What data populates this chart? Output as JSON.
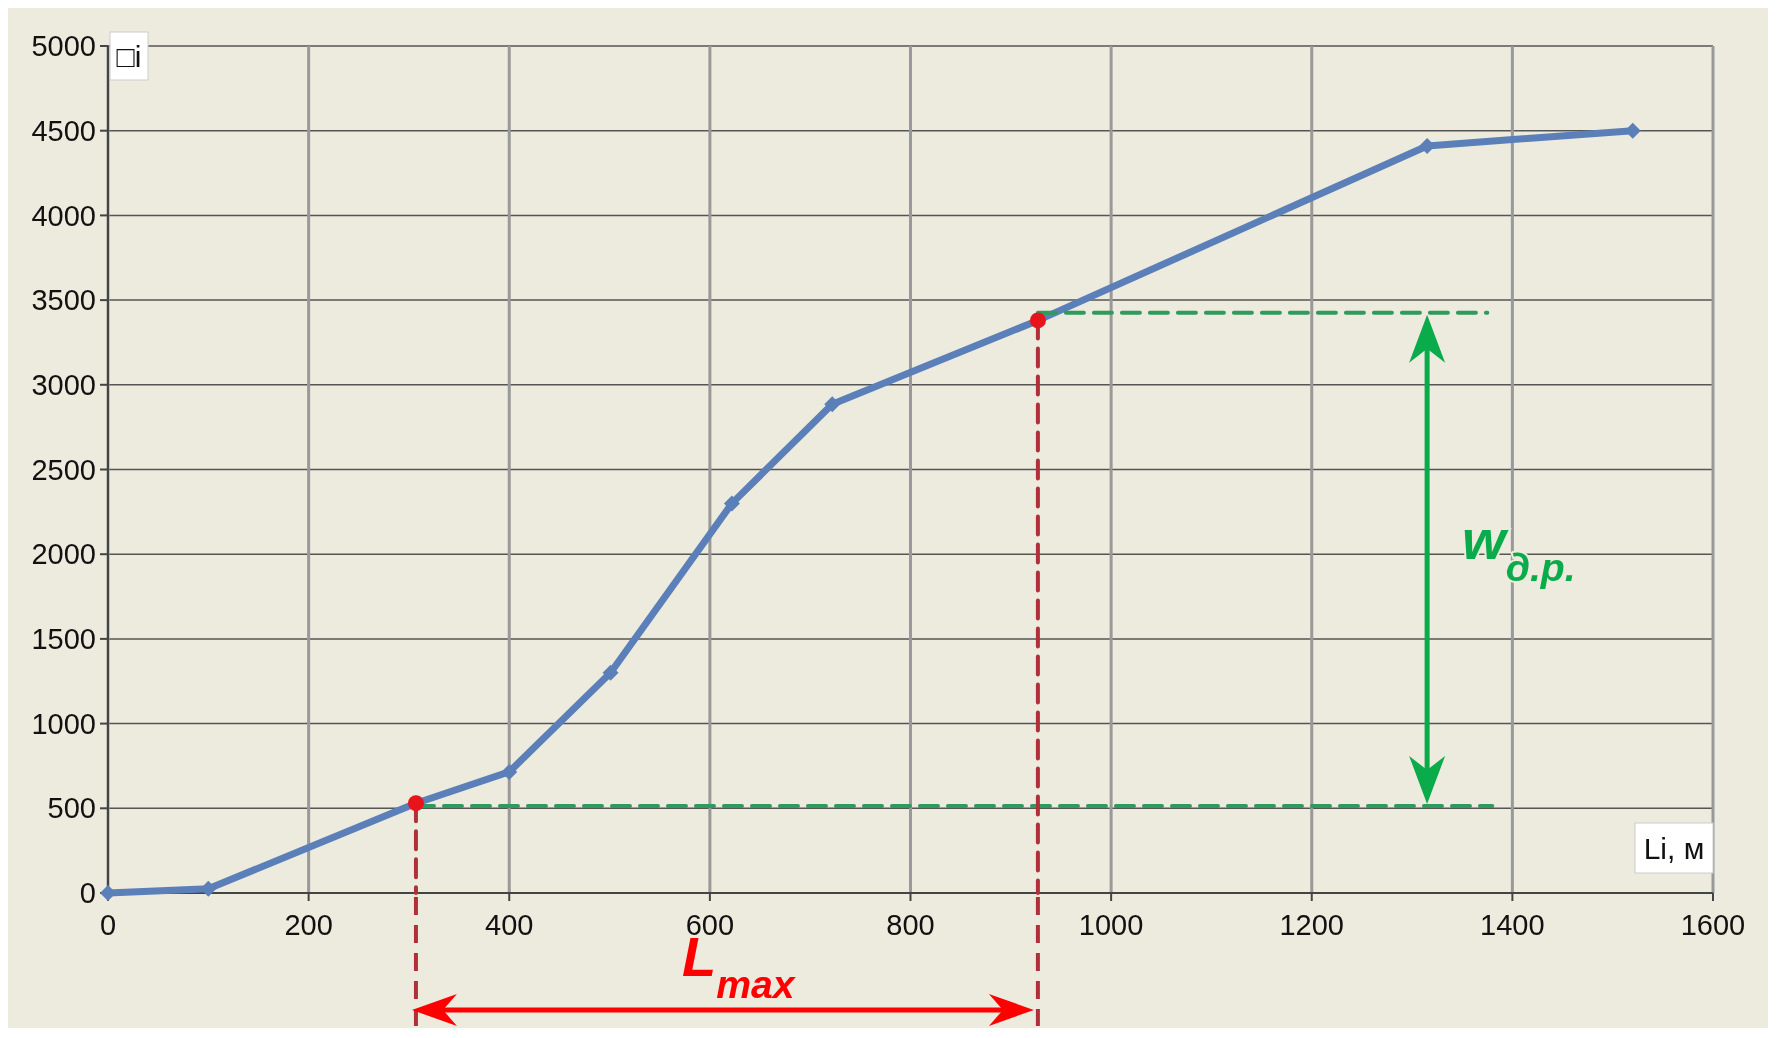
{
  "chart_data": {
    "type": "line",
    "xlabel": "Li, м",
    "ylabel": "□i",
    "xlim": [
      0,
      1600
    ],
    "xticks": [
      0,
      200,
      400,
      600,
      800,
      1000,
      1200,
      1400,
      1600
    ],
    "ylim": [
      0,
      5000
    ],
    "yticks": [
      0,
      500,
      1000,
      1500,
      2000,
      2500,
      3000,
      3500,
      4000,
      4500,
      5000
    ],
    "grid": true,
    "annotations": [
      "L$_{max}$",
      "w$_{д.р.}$"
    ],
    "series": [
      {
        "type": "line",
        "color": "#5b7fb8",
        "marker": "diamond",
        "line_style": "solid",
        "x": [
          0,
          100,
          307,
          400,
          501,
          622,
          722,
          927,
          1315,
          1520
        ],
        "values": [
          0,
          25,
          530,
          715,
          1300,
          2300,
          2885,
          3380,
          4410,
          4500
        ]
      },
      {
        "type": "line",
        "color": "#2e9a5c",
        "marker": "none",
        "line_style": "dashed",
        "x": [
          307,
          1380
        ],
        "values": [
          514,
          514
        ]
      },
      {
        "type": "line",
        "color": "#2e9a5c",
        "marker": "none",
        "line_style": "dashed",
        "x": [
          927,
          1375
        ],
        "values": [
          3425,
          3425
        ]
      },
      {
        "type": "line",
        "color": "#b0303a",
        "marker": "none",
        "line_style": "dashed",
        "x": [
          307,
          307
        ],
        "values": [
          530,
          0
        ]
      },
      {
        "type": "line",
        "color": "#b0303a",
        "marker": "none",
        "line_style": "dashed",
        "x": [
          927,
          927
        ],
        "values": [
          3380,
          0
        ]
      },
      {
        "type": "scatter",
        "color": "#e8141b",
        "marker": "circle",
        "x": [
          307,
          927
        ],
        "values": [
          530,
          3380
        ]
      }
    ]
  }
}
